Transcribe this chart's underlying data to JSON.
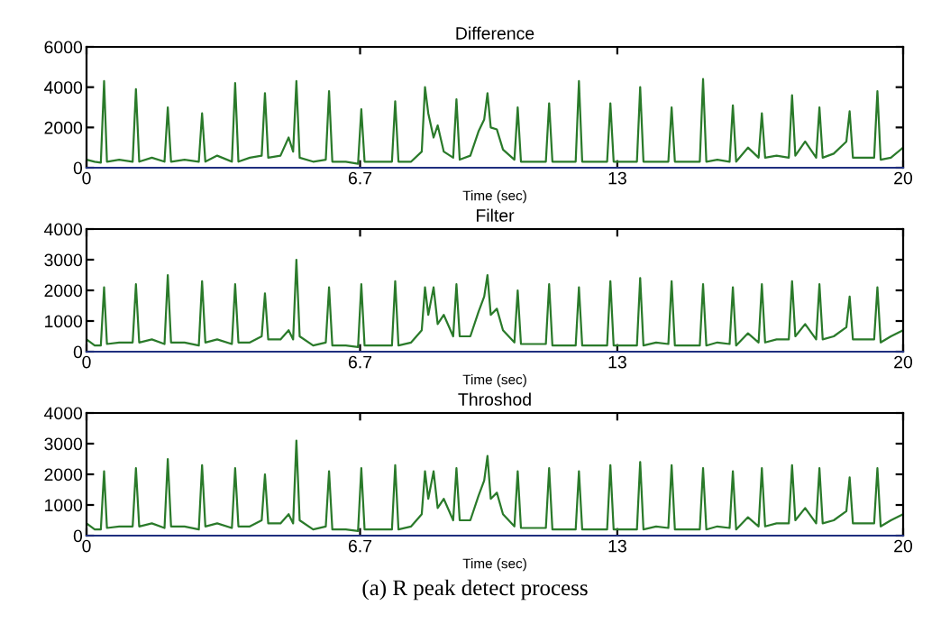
{
  "chart_data": [
    {
      "type": "line",
      "title": "Difference",
      "xlabel": "Time (sec)",
      "x": [
        0,
        0.2,
        0.35,
        0.43,
        0.5,
        0.8,
        1.13,
        1.21,
        1.29,
        1.6,
        1.91,
        1.99,
        2.07,
        2.4,
        2.75,
        2.83,
        2.91,
        3.2,
        3.56,
        3.64,
        3.72,
        4.0,
        4.29,
        4.37,
        4.45,
        4.75,
        4.95,
        5.06,
        5.14,
        5.22,
        5.55,
        5.86,
        5.94,
        6.02,
        6.35,
        6.65,
        6.73,
        6.81,
        7.15,
        7.48,
        7.56,
        7.64,
        7.95,
        8.21,
        8.29,
        8.37,
        8.5,
        8.6,
        8.75,
        8.98,
        9.06,
        9.14,
        9.4,
        9.6,
        9.74,
        9.82,
        9.9,
        10.05,
        10.2,
        10.48,
        10.56,
        10.64,
        10.95,
        11.25,
        11.33,
        11.41,
        11.7,
        11.98,
        12.06,
        12.14,
        12.45,
        12.75,
        12.83,
        12.91,
        13.2,
        13.48,
        13.56,
        13.64,
        13.95,
        14.25,
        14.33,
        14.41,
        14.7,
        15.02,
        15.1,
        15.18,
        15.45,
        15.75,
        15.83,
        15.91,
        16.2,
        16.46,
        16.54,
        16.62,
        16.9,
        17.2,
        17.28,
        17.36,
        17.6,
        17.87,
        17.95,
        18.03,
        18.3,
        18.61,
        18.69,
        18.77,
        19.0,
        19.29,
        19.37,
        19.45,
        19.7,
        20
      ],
      "series": [
        {
          "color": "#2a7a2a",
          "values": [
            400,
            300,
            250,
            4300,
            300,
            400,
            300,
            3900,
            300,
            500,
            300,
            3000,
            300,
            400,
            300,
            2700,
            300,
            600,
            300,
            4200,
            300,
            500,
            600,
            3700,
            500,
            600,
            1500,
            800,
            4300,
            500,
            300,
            400,
            3800,
            300,
            300,
            200,
            2900,
            300,
            300,
            300,
            3300,
            300,
            300,
            800,
            4000,
            2700,
            1500,
            2100,
            800,
            500,
            3400,
            400,
            600,
            1800,
            2400,
            3700,
            2000,
            1900,
            900,
            400,
            3000,
            300,
            300,
            300,
            3200,
            300,
            300,
            300,
            4300,
            300,
            300,
            300,
            3200,
            300,
            300,
            300,
            4000,
            300,
            300,
            300,
            3000,
            300,
            300,
            300,
            4400,
            300,
            400,
            300,
            3100,
            300,
            1000,
            500,
            2700,
            500,
            600,
            500,
            3600,
            600,
            1300,
            500,
            3000,
            500,
            700,
            1300,
            2800,
            500,
            500,
            500,
            3800,
            400,
            500,
            1000
          ]
        }
      ],
      "xlim": [
        0,
        20
      ],
      "ylim": [
        0,
        6000
      ],
      "xticks": [
        0,
        6.7,
        13,
        20
      ],
      "yticks": [
        0,
        2000,
        4000,
        6000
      ],
      "grid": false,
      "legend": false
    },
    {
      "type": "line",
      "title": "Filter",
      "xlabel": "Time (sec)",
      "x": [
        0,
        0.2,
        0.35,
        0.43,
        0.5,
        0.8,
        1.13,
        1.21,
        1.29,
        1.6,
        1.91,
        1.99,
        2.07,
        2.4,
        2.75,
        2.83,
        2.91,
        3.2,
        3.56,
        3.64,
        3.72,
        4.0,
        4.29,
        4.37,
        4.45,
        4.75,
        4.95,
        5.06,
        5.14,
        5.22,
        5.55,
        5.86,
        5.94,
        6.02,
        6.35,
        6.65,
        6.73,
        6.81,
        7.15,
        7.48,
        7.56,
        7.64,
        7.95,
        8.21,
        8.29,
        8.37,
        8.5,
        8.6,
        8.75,
        8.98,
        9.06,
        9.14,
        9.4,
        9.6,
        9.74,
        9.82,
        9.9,
        10.05,
        10.2,
        10.48,
        10.56,
        10.64,
        10.95,
        11.25,
        11.33,
        11.41,
        11.7,
        11.98,
        12.06,
        12.14,
        12.45,
        12.75,
        12.83,
        12.91,
        13.2,
        13.48,
        13.56,
        13.64,
        13.95,
        14.25,
        14.33,
        14.41,
        14.7,
        15.02,
        15.1,
        15.18,
        15.45,
        15.75,
        15.83,
        15.91,
        16.2,
        16.46,
        16.54,
        16.62,
        16.9,
        17.2,
        17.28,
        17.36,
        17.6,
        17.87,
        17.95,
        18.03,
        18.3,
        18.61,
        18.69,
        18.77,
        19.0,
        19.29,
        19.37,
        19.45,
        19.7,
        20
      ],
      "series": [
        {
          "color": "#2a7a2a",
          "values": [
            400,
            200,
            200,
            2100,
            250,
            300,
            300,
            2200,
            300,
            400,
            250,
            2500,
            300,
            300,
            200,
            2300,
            300,
            400,
            250,
            2200,
            300,
            300,
            500,
            1900,
            400,
            400,
            700,
            400,
            3000,
            500,
            200,
            300,
            2100,
            200,
            200,
            150,
            2200,
            200,
            200,
            200,
            2300,
            200,
            300,
            700,
            2100,
            1200,
            2100,
            900,
            1200,
            500,
            2200,
            500,
            500,
            1300,
            1800,
            2500,
            1200,
            1400,
            700,
            300,
            2000,
            250,
            250,
            250,
            2200,
            200,
            200,
            200,
            2100,
            200,
            200,
            200,
            2300,
            200,
            200,
            200,
            2400,
            200,
            300,
            250,
            2300,
            200,
            200,
            200,
            2200,
            200,
            300,
            250,
            2100,
            200,
            600,
            300,
            2200,
            300,
            400,
            400,
            2300,
            500,
            900,
            400,
            2200,
            400,
            500,
            800,
            1800,
            400,
            400,
            400,
            2100,
            300,
            500,
            700
          ]
        }
      ],
      "xlim": [
        0,
        20
      ],
      "ylim": [
        0,
        4000
      ],
      "xticks": [
        0,
        6.7,
        13,
        20
      ],
      "yticks": [
        0,
        1000,
        2000,
        3000,
        4000
      ],
      "grid": false,
      "legend": false
    },
    {
      "type": "line",
      "title": "Throshod",
      "xlabel": "Time (sec)",
      "x": [
        0,
        0.2,
        0.35,
        0.43,
        0.5,
        0.8,
        1.13,
        1.21,
        1.29,
        1.6,
        1.91,
        1.99,
        2.07,
        2.4,
        2.75,
        2.83,
        2.91,
        3.2,
        3.56,
        3.64,
        3.72,
        4.0,
        4.29,
        4.37,
        4.45,
        4.75,
        4.95,
        5.06,
        5.14,
        5.22,
        5.55,
        5.86,
        5.94,
        6.02,
        6.35,
        6.65,
        6.73,
        6.81,
        7.15,
        7.48,
        7.56,
        7.64,
        7.95,
        8.21,
        8.29,
        8.37,
        8.5,
        8.6,
        8.75,
        8.98,
        9.06,
        9.14,
        9.4,
        9.6,
        9.74,
        9.82,
        9.9,
        10.05,
        10.2,
        10.48,
        10.56,
        10.64,
        10.95,
        11.25,
        11.33,
        11.41,
        11.7,
        11.98,
        12.06,
        12.14,
        12.45,
        12.75,
        12.83,
        12.91,
        13.2,
        13.48,
        13.56,
        13.64,
        13.95,
        14.25,
        14.33,
        14.41,
        14.7,
        15.02,
        15.1,
        15.18,
        15.45,
        15.75,
        15.83,
        15.91,
        16.2,
        16.46,
        16.54,
        16.62,
        16.9,
        17.2,
        17.28,
        17.36,
        17.6,
        17.87,
        17.95,
        18.03,
        18.3,
        18.61,
        18.69,
        18.77,
        19.0,
        19.29,
        19.37,
        19.45,
        19.7,
        20
      ],
      "series": [
        {
          "color": "#2a7a2a",
          "values": [
            400,
            200,
            200,
            2100,
            250,
            300,
            300,
            2200,
            300,
            400,
            250,
            2500,
            300,
            300,
            200,
            2300,
            300,
            400,
            250,
            2200,
            300,
            300,
            500,
            2000,
            400,
            400,
            700,
            400,
            3100,
            500,
            200,
            300,
            2100,
            200,
            200,
            150,
            2200,
            200,
            200,
            200,
            2300,
            200,
            300,
            700,
            2100,
            1200,
            2100,
            900,
            1200,
            500,
            2200,
            500,
            500,
            1300,
            1800,
            2600,
            1200,
            1400,
            700,
            300,
            2100,
            250,
            250,
            250,
            2200,
            200,
            200,
            200,
            2100,
            200,
            200,
            200,
            2300,
            200,
            200,
            200,
            2400,
            200,
            300,
            250,
            2300,
            200,
            200,
            200,
            2200,
            200,
            300,
            250,
            2100,
            200,
            600,
            300,
            2200,
            300,
            400,
            400,
            2300,
            500,
            900,
            400,
            2200,
            400,
            500,
            800,
            1900,
            400,
            400,
            400,
            2200,
            300,
            500,
            700
          ]
        }
      ],
      "xlim": [
        0,
        20
      ],
      "ylim": [
        0,
        4000
      ],
      "xticks": [
        0,
        6.7,
        13,
        20
      ],
      "yticks": [
        0,
        1000,
        2000,
        3000,
        4000
      ],
      "grid": false,
      "legend": false,
      "annotations": [
        "(a) R peak detect process"
      ]
    }
  ]
}
